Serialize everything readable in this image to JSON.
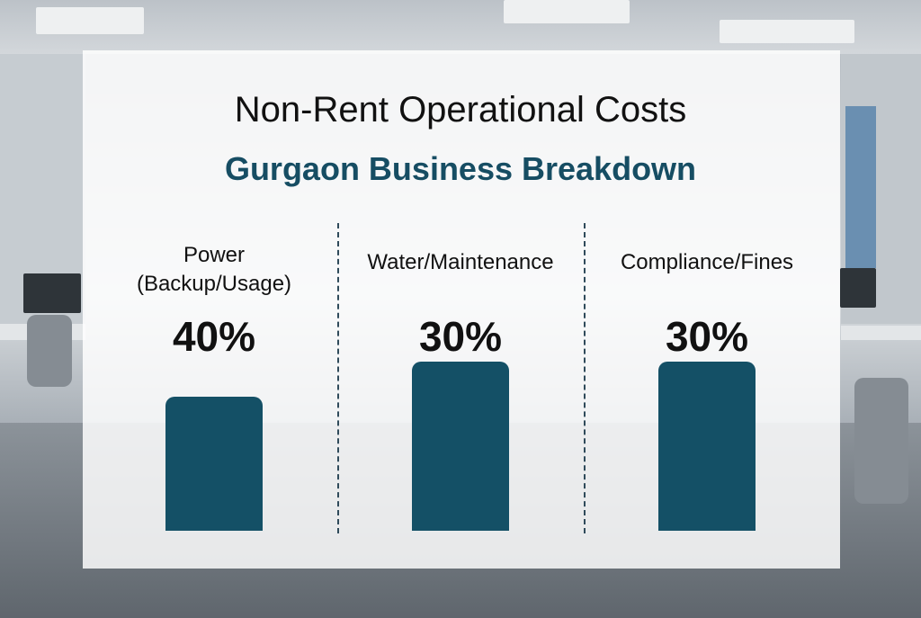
{
  "chart_data": {
    "type": "bar",
    "title": "Non-Rent Operational Costs",
    "subtitle": "Gurgaon Business Breakdown",
    "categories": [
      "Power\n(Backup/Usage)",
      "Water/Maintenance",
      "Compliance/Fines"
    ],
    "category_lines": [
      [
        "Power",
        "(Backup/Usage)"
      ],
      [
        "Water/Maintenance"
      ],
      [
        "Compliance/Fines"
      ]
    ],
    "values": [
      40,
      30,
      30
    ],
    "value_labels": [
      "40%",
      "30%",
      "30%"
    ],
    "unit": "%",
    "grid": false,
    "legend": "none",
    "bar_color": "#145066"
  },
  "colors": {
    "title": "#111111",
    "subtitle": "#164d63",
    "bar": "#145066",
    "divider": "#2f4a5a"
  }
}
